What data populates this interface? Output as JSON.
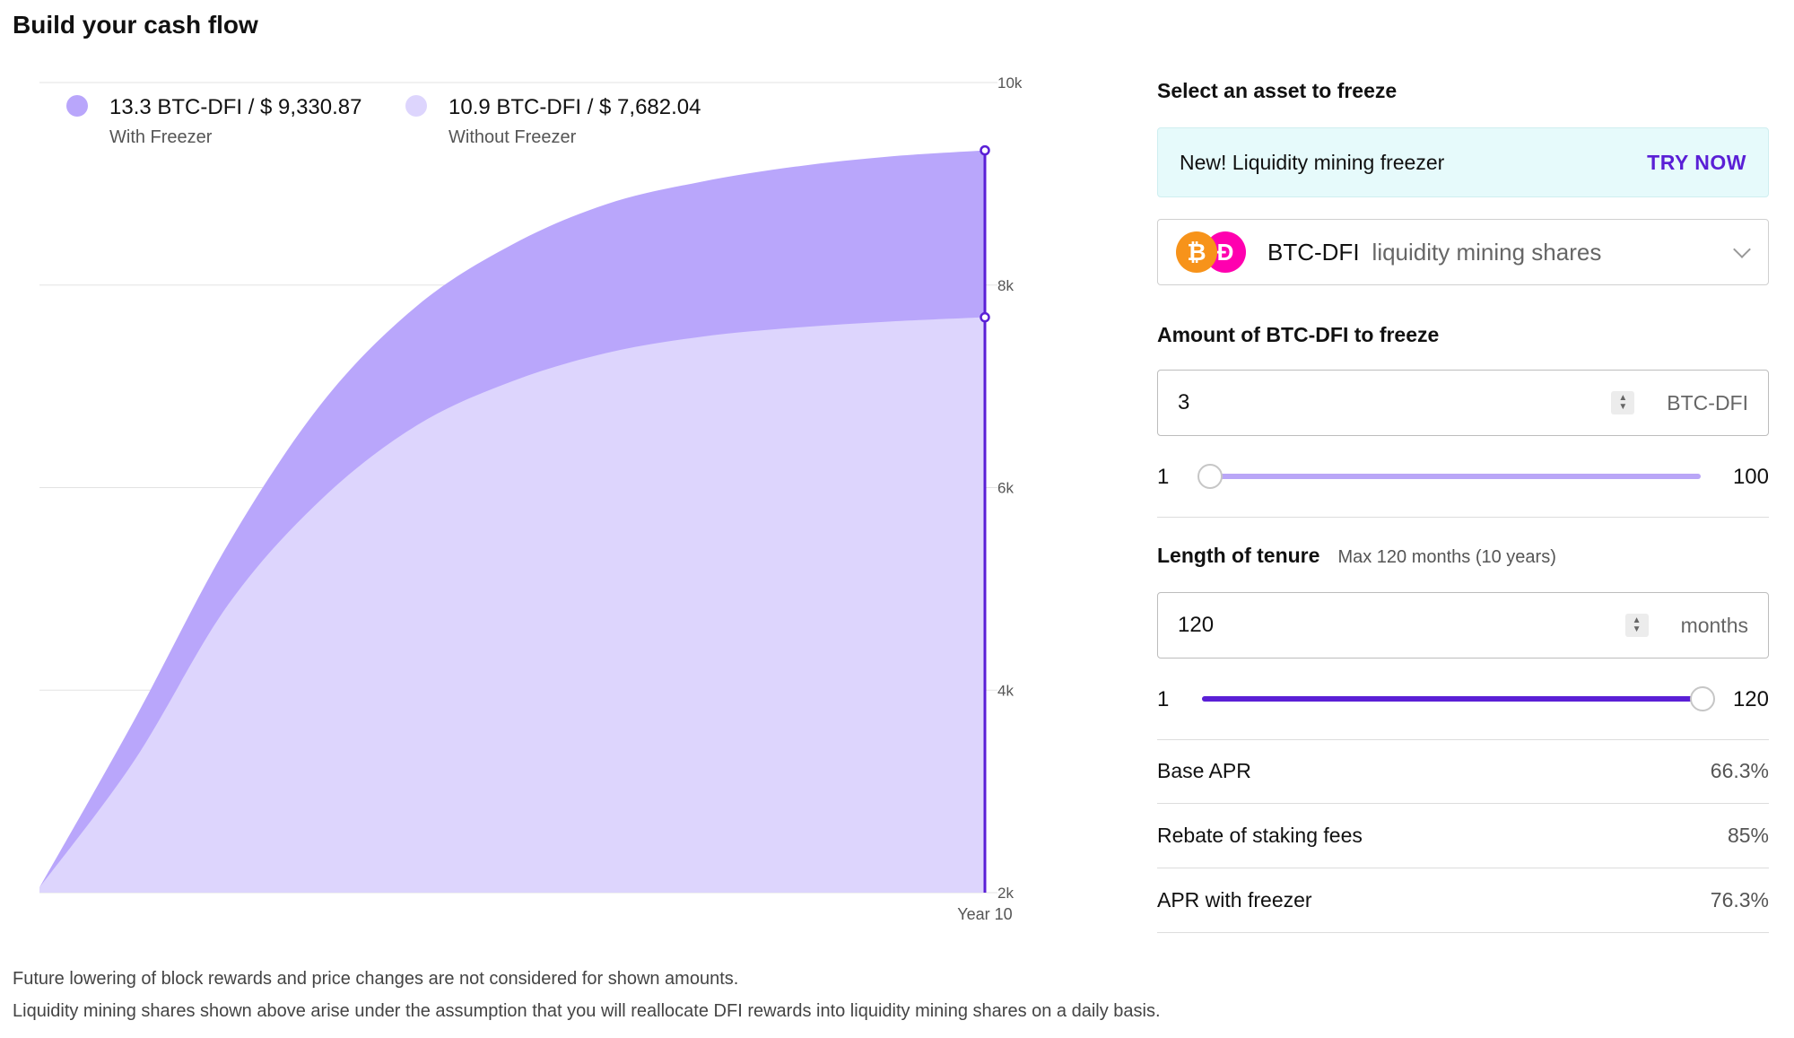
{
  "page": {
    "title": "Build your cash flow"
  },
  "legend": [
    {
      "main": "13.3 BTC-DFI / $ 9,330.87",
      "sub": "With Freezer",
      "color": "#b9a6fb"
    },
    {
      "main": "10.9 BTC-DFI / $ 7,682.04",
      "sub": "Without Freezer",
      "color": "#ddd5fd"
    }
  ],
  "chart_data": {
    "type": "area",
    "x_tick_labels": [
      "Year 10"
    ],
    "y_ticks": [
      2000,
      4000,
      6000,
      8000,
      10000
    ],
    "y_tick_labels": [
      "2k",
      "4k",
      "6k",
      "8k",
      "10k"
    ],
    "ylim": [
      2000,
      10000
    ],
    "x": [
      0,
      1,
      2,
      3,
      4,
      5,
      6,
      7,
      8,
      9,
      10
    ],
    "series": [
      {
        "name": "With Freezer",
        "color": "#b9a6fb",
        "values": [
          2050,
          3700,
          5450,
          6850,
          7800,
          8400,
          8800,
          9020,
          9170,
          9270,
          9330
        ]
      },
      {
        "name": "Without Freezer",
        "color": "#ddd5fd",
        "values": [
          2050,
          3300,
          4850,
          5900,
          6620,
          7050,
          7330,
          7490,
          7580,
          7640,
          7682
        ]
      }
    ],
    "marker_color": "#5a1fd6",
    "grid": true
  },
  "footnotes": [
    "Future lowering of block rewards and price changes are not considered for shown amounts.",
    "Liquidity mining shares shown above arise under the assumption that you will reallocate DFI rewards into liquidity mining shares on a daily basis."
  ],
  "panel": {
    "select_label": "Select an asset to freeze",
    "banner": {
      "text": "New! Liquidity mining freezer",
      "link": "TRY NOW"
    },
    "asset": {
      "symbol": "BTC-DFI",
      "desc": "liquidity mining shares",
      "btc_glyph": "₿",
      "dfi_glyph": "Ð"
    },
    "amount": {
      "label": "Amount of BTC-DFI to freeze",
      "value": "3",
      "unit": "BTC-DFI",
      "min": "1",
      "max": "100",
      "fraction": 0.02
    },
    "tenure": {
      "label": "Length of tenure",
      "hint": "Max 120 months (10 years)",
      "value": "120",
      "unit": "months",
      "min": "1",
      "max": "120",
      "fraction": 1.0
    },
    "stats": [
      {
        "label": "Base APR",
        "value": "66.3%"
      },
      {
        "label": "Rebate of staking fees",
        "value": "85%"
      },
      {
        "label": "APR with freezer",
        "value": "76.3%"
      }
    ]
  },
  "colors": {
    "accent": "#5a1fd6",
    "track": "#b9a6f7",
    "banner_bg": "#e6fafb"
  }
}
